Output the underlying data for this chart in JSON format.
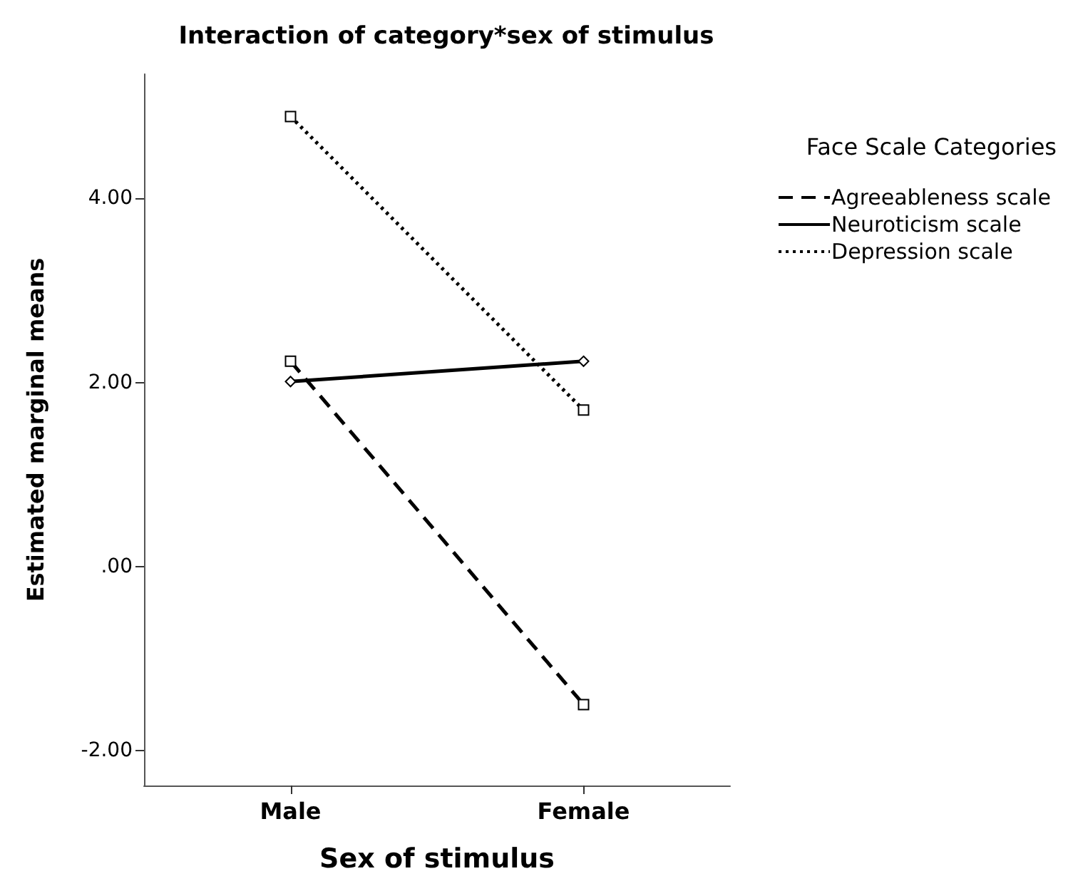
{
  "chart_data": {
    "type": "line",
    "title": "Interaction of category*sex of stimulus",
    "xlabel": "Sex of stimulus",
    "ylabel": "Estimated marginal means",
    "legend_title": "Face Scale Categories",
    "categories": [
      "Male",
      "Female"
    ],
    "series": [
      {
        "name": "Agreeableness scale",
        "color": "#000000",
        "values": [
          2.23,
          -1.5
        ],
        "line_style": "dashed",
        "marker": "square"
      },
      {
        "name": "Neuroticism scale",
        "color": "#000000",
        "values": [
          2.01,
          2.23
        ],
        "line_style": "solid",
        "marker": "diamond"
      },
      {
        "name": "Depression scale",
        "color": "#000000",
        "values": [
          4.89,
          1.7
        ],
        "line_style": "dotted",
        "marker": "square"
      }
    ],
    "ylim": [
      -2.38,
      5.35
    ],
    "yticks": [
      {
        "value": -2,
        "label": "-2.00"
      },
      {
        "value": 0,
        "label": ".00"
      },
      {
        "value": 2,
        "label": "2.00"
      },
      {
        "value": 4,
        "label": "4.00"
      }
    ],
    "grid": false,
    "legend": "right"
  }
}
